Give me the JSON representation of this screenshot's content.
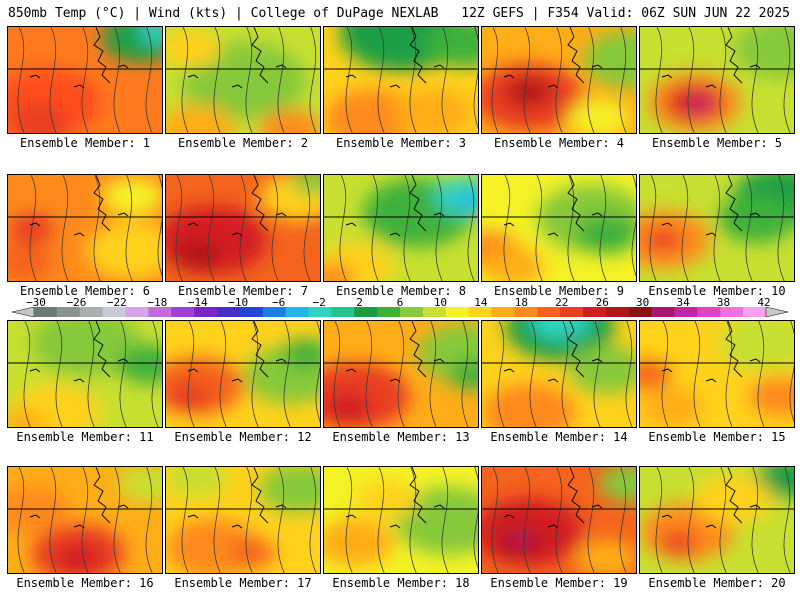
{
  "header": {
    "title_left": "850mb Temp (°C) | Wind (kts) | College of DuPage NEXLAB",
    "title_right": "12Z GEFS | F354 Valid: 06Z SUN JUN 22 2025"
  },
  "colorbar": {
    "labels": [
      "−30",
      "−26",
      "−22",
      "−18",
      "−14",
      "−10",
      "−6",
      "−2",
      "2",
      "6",
      "10",
      "14",
      "18",
      "22",
      "26",
      "30",
      "34",
      "38",
      "42"
    ],
    "colors": [
      "#6e7a74",
      "#8a938f",
      "#a9afad",
      "#c7c9d6",
      "#d6a2e8",
      "#c46bdc",
      "#a03fd2",
      "#7a24c8",
      "#4a2ec8",
      "#2046d8",
      "#1a7ee6",
      "#22b7e8",
      "#30d2c0",
      "#25c48a",
      "#1a9e44",
      "#3cb13a",
      "#86c93a",
      "#c8e031",
      "#f4f226",
      "#ffd21c",
      "#ffad18",
      "#ff8a1c",
      "#f4641e",
      "#e83e22",
      "#d21e22",
      "#b01818",
      "#8a1212",
      "#a8166e",
      "#c425a6",
      "#e043c6",
      "#f070e0",
      "#f8a0ee"
    ],
    "arrow_left_color": "#c8c8c8",
    "arrow_right_color": "#c8c8c8"
  },
  "panels": [
    {
      "label": "Ensemble Member: 1",
      "base": "#ff7a1f",
      "spots": [
        [
          "#ff4d1e",
          0.25,
          0.7,
          0.35
        ],
        [
          "#e83e22",
          0.2,
          0.9,
          0.2
        ],
        [
          "#1a9e44",
          0.85,
          0.1,
          0.25
        ],
        [
          "#30d2c0",
          0.95,
          0.05,
          0.12
        ]
      ]
    },
    {
      "label": "Ensemble Member: 2",
      "base": "#c8e031",
      "spots": [
        [
          "#86c93a",
          0.5,
          0.5,
          0.4
        ],
        [
          "#ffd21c",
          0.15,
          0.2,
          0.2
        ],
        [
          "#ffad18",
          0.2,
          0.95,
          0.25
        ],
        [
          "#ff8a1c",
          0.8,
          0.95,
          0.2
        ]
      ]
    },
    {
      "label": "Ensemble Member: 3",
      "base": "#ffd21c",
      "spots": [
        [
          "#1a9e44",
          0.5,
          0.05,
          0.4
        ],
        [
          "#3cb13a",
          0.9,
          0.15,
          0.25
        ],
        [
          "#ff8a1c",
          0.3,
          0.85,
          0.3
        ],
        [
          "#ffad18",
          0.7,
          0.8,
          0.25
        ]
      ]
    },
    {
      "label": "Ensemble Member: 4",
      "base": "#ffad18",
      "spots": [
        [
          "#e83e22",
          0.3,
          0.65,
          0.35
        ],
        [
          "#b01818",
          0.3,
          0.6,
          0.15
        ],
        [
          "#86c93a",
          0.95,
          0.3,
          0.3
        ],
        [
          "#f4f226",
          0.75,
          0.85,
          0.2
        ]
      ]
    },
    {
      "label": "Ensemble Member: 5",
      "base": "#c8e031",
      "spots": [
        [
          "#ff8a1c",
          0.35,
          0.7,
          0.3
        ],
        [
          "#d21e22",
          0.35,
          0.7,
          0.18
        ],
        [
          "#c425a6",
          0.38,
          0.72,
          0.05
        ],
        [
          "#86c93a",
          0.9,
          0.2,
          0.3
        ]
      ]
    },
    {
      "label": "Ensemble Member: 6",
      "base": "#ff8a1c",
      "spots": [
        [
          "#f4641e",
          0.1,
          0.8,
          0.2
        ],
        [
          "#ffd21c",
          0.8,
          0.7,
          0.3
        ],
        [
          "#f4f226",
          0.8,
          0.2,
          0.2
        ],
        [
          "#e83e22",
          0.15,
          0.5,
          0.15
        ]
      ]
    },
    {
      "label": "Ensemble Member: 7",
      "base": "#f4641e",
      "spots": [
        [
          "#d21e22",
          0.3,
          0.6,
          0.35
        ],
        [
          "#b01818",
          0.2,
          0.75,
          0.15
        ],
        [
          "#ffd21c",
          0.85,
          0.2,
          0.25
        ],
        [
          "#86c93a",
          0.95,
          0.05,
          0.15
        ]
      ]
    },
    {
      "label": "Ensemble Member: 8",
      "base": "#c8e031",
      "spots": [
        [
          "#3cb13a",
          0.6,
          0.35,
          0.35
        ],
        [
          "#30d2c0",
          0.9,
          0.2,
          0.2
        ],
        [
          "#22b7e8",
          0.95,
          0.25,
          0.1
        ],
        [
          "#ffd21c",
          0.2,
          0.85,
          0.25
        ],
        [
          "#ff8a1c",
          0.05,
          0.95,
          0.15
        ]
      ]
    },
    {
      "label": "Ensemble Member: 9",
      "base": "#f4f226",
      "spots": [
        [
          "#86c93a",
          0.7,
          0.4,
          0.35
        ],
        [
          "#3cb13a",
          0.8,
          0.55,
          0.2
        ],
        [
          "#ff8a1c",
          0.05,
          0.7,
          0.2
        ],
        [
          "#ffad18",
          0.2,
          0.85,
          0.2
        ]
      ]
    },
    {
      "label": "Ensemble Member: 10",
      "base": "#c8e031",
      "spots": [
        [
          "#1a9e44",
          0.9,
          0.2,
          0.3
        ],
        [
          "#3cb13a",
          0.75,
          0.4,
          0.25
        ],
        [
          "#ff8a1c",
          0.15,
          0.6,
          0.3
        ],
        [
          "#e83e22",
          0.15,
          0.6,
          0.12
        ]
      ]
    },
    {
      "label": "Ensemble Member: 11",
      "base": "#c8e031",
      "spots": [
        [
          "#86c93a",
          0.5,
          0.2,
          0.35
        ],
        [
          "#ffd21c",
          0.3,
          0.85,
          0.3
        ],
        [
          "#ffad18",
          0.1,
          0.95,
          0.15
        ],
        [
          "#3cb13a",
          0.9,
          0.4,
          0.2
        ]
      ]
    },
    {
      "label": "Ensemble Member: 12",
      "base": "#ffd21c",
      "spots": [
        [
          "#f4641e",
          0.2,
          0.6,
          0.3
        ],
        [
          "#e83e22",
          0.15,
          0.7,
          0.15
        ],
        [
          "#86c93a",
          0.8,
          0.5,
          0.3
        ],
        [
          "#3cb13a",
          0.9,
          0.3,
          0.15
        ]
      ]
    },
    {
      "label": "Ensemble Member: 13",
      "base": "#ffad18",
      "spots": [
        [
          "#e83e22",
          0.2,
          0.7,
          0.35
        ],
        [
          "#d21e22",
          0.15,
          0.8,
          0.15
        ],
        [
          "#86c93a",
          0.9,
          0.3,
          0.3
        ],
        [
          "#3cb13a",
          0.95,
          0.5,
          0.15
        ]
      ]
    },
    {
      "label": "Ensemble Member: 14",
      "base": "#ffd21c",
      "spots": [
        [
          "#1a9e44",
          0.5,
          0.05,
          0.35
        ],
        [
          "#30d2c0",
          0.5,
          0.0,
          0.2
        ],
        [
          "#ff8a1c",
          0.3,
          0.85,
          0.3
        ],
        [
          "#86c93a",
          0.8,
          0.45,
          0.25
        ]
      ]
    },
    {
      "label": "Ensemble Member: 15",
      "base": "#ffd21c",
      "spots": [
        [
          "#f4641e",
          0.05,
          0.5,
          0.15
        ],
        [
          "#ffad18",
          0.2,
          0.8,
          0.2
        ],
        [
          "#c8e031",
          0.8,
          0.2,
          0.3
        ],
        [
          "#ff8a1c",
          0.9,
          0.7,
          0.2
        ]
      ]
    },
    {
      "label": "Ensemble Member: 16",
      "base": "#ffad18",
      "spots": [
        [
          "#e83e22",
          0.45,
          0.8,
          0.3
        ],
        [
          "#d21e22",
          0.45,
          0.85,
          0.15
        ],
        [
          "#c8e031",
          0.9,
          0.15,
          0.2
        ],
        [
          "#ff8a1c",
          0.15,
          0.4,
          0.25
        ]
      ]
    },
    {
      "label": "Ensemble Member: 17",
      "base": "#ffd21c",
      "spots": [
        [
          "#ff8a1c",
          0.3,
          0.75,
          0.3
        ],
        [
          "#f4641e",
          0.55,
          0.8,
          0.15
        ],
        [
          "#86c93a",
          0.85,
          0.2,
          0.25
        ],
        [
          "#c8e031",
          0.2,
          0.1,
          0.2
        ]
      ]
    },
    {
      "label": "Ensemble Member: 18",
      "base": "#f4f226",
      "spots": [
        [
          "#3cb13a",
          0.85,
          0.55,
          0.25
        ],
        [
          "#86c93a",
          0.8,
          0.5,
          0.35
        ],
        [
          "#ffad18",
          0.2,
          0.7,
          0.25
        ],
        [
          "#ffd21c",
          0.4,
          0.3,
          0.2
        ]
      ]
    },
    {
      "label": "Ensemble Member: 19",
      "base": "#f4641e",
      "spots": [
        [
          "#d21e22",
          0.3,
          0.6,
          0.35
        ],
        [
          "#b01818",
          0.25,
          0.7,
          0.15
        ],
        [
          "#c425a6",
          0.25,
          0.68,
          0.04
        ],
        [
          "#86c93a",
          0.95,
          0.15,
          0.2
        ],
        [
          "#ffad18",
          0.8,
          0.85,
          0.2
        ]
      ]
    },
    {
      "label": "Ensemble Member: 20",
      "base": "#c8e031",
      "spots": [
        [
          "#ff8a1c",
          0.3,
          0.6,
          0.3
        ],
        [
          "#e83e22",
          0.25,
          0.7,
          0.12
        ],
        [
          "#1a9e44",
          0.95,
          0.1,
          0.2
        ],
        [
          "#ffd21c",
          0.6,
          0.3,
          0.25
        ]
      ]
    }
  ]
}
